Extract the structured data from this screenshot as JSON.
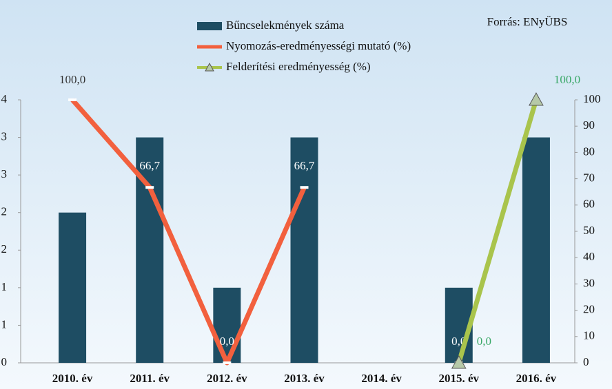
{
  "chart_data": {
    "type": "bar",
    "annotation": "Forrás: ENyÜBS",
    "categories": [
      "2010. év",
      "2011. év",
      "2012. év",
      "2013. év",
      "2014. év",
      "2015. év",
      "2016. év"
    ],
    "series": [
      {
        "name": "Bűncselekmények száma",
        "type": "bar",
        "color": "#1e4d63",
        "values": [
          2,
          3,
          1,
          3,
          0,
          1,
          3
        ]
      },
      {
        "name": "Nyomozás-eredményességi mutató (%)",
        "type": "line",
        "axis": "y2",
        "color": "#f2603e",
        "values": [
          100,
          66.7,
          0,
          66.7,
          null,
          0,
          null
        ],
        "value_labels": [
          "100,0",
          "66,7",
          "0,0",
          "66,7",
          null,
          "0,0",
          null
        ]
      },
      {
        "name": "Felderítési eredményesség (%)",
        "type": "line",
        "axis": "y2",
        "marker": "triangle",
        "color": "#a9c44c",
        "values": [
          null,
          null,
          null,
          null,
          null,
          0,
          100
        ],
        "value_labels": [
          null,
          null,
          null,
          null,
          null,
          "0,0",
          "100,0"
        ]
      }
    ],
    "ylim": [
      0,
      3.5
    ],
    "yticks": [
      0,
      {
        "value": 0.5,
        "label": "1"
      },
      1,
      {
        "value": 1.5,
        "label": "2"
      },
      2,
      {
        "value": 2.5,
        "label": "3"
      },
      3,
      {
        "value": 3.5,
        "label": "4"
      }
    ],
    "y2lim": [
      0,
      100
    ],
    "y2ticks": [
      0,
      10,
      20,
      30,
      40,
      50,
      60,
      70,
      80,
      90,
      100
    ],
    "legend": "top"
  }
}
